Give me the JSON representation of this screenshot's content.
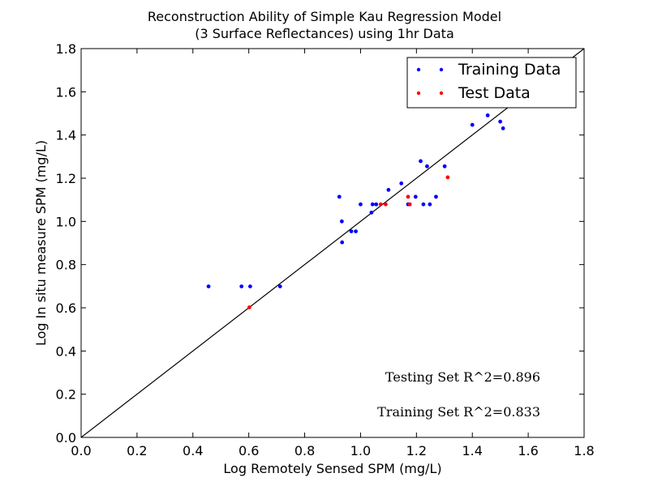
{
  "chart_data": {
    "type": "scatter",
    "title_line1": "Reconstruction Ability of Simple Kau Regression Model",
    "title_line2": "(3 Surface Reflectances) using 1hr Data",
    "xlabel": "Log Remotely Sensed SPM (mg/L)",
    "ylabel": "Log In situ measure SPM (mg/L)",
    "xlim": [
      0.0,
      1.8
    ],
    "ylim": [
      0.0,
      1.8
    ],
    "xticks": [
      "0.0",
      "0.2",
      "0.4",
      "0.6",
      "0.8",
      "1.0",
      "1.2",
      "1.4",
      "1.6",
      "1.8"
    ],
    "yticks": [
      "0.0",
      "0.2",
      "0.4",
      "0.6",
      "0.8",
      "1.0",
      "1.2",
      "1.4",
      "1.6",
      "1.8"
    ],
    "grid": false,
    "legend_position": "upper-right",
    "series": [
      {
        "name": "Training Data",
        "color": "#0000ff",
        "points": [
          [
            0.456,
            0.699
          ],
          [
            0.574,
            0.699
          ],
          [
            0.605,
            0.699
          ],
          [
            0.712,
            0.699
          ],
          [
            0.924,
            1.114
          ],
          [
            0.933,
            1.0
          ],
          [
            0.934,
            0.903
          ],
          [
            0.967,
            0.954
          ],
          [
            0.983,
            0.954
          ],
          [
            1.0,
            1.079
          ],
          [
            1.039,
            1.041
          ],
          [
            1.043,
            1.079
          ],
          [
            1.056,
            1.079
          ],
          [
            1.1,
            1.146
          ],
          [
            1.146,
            1.176
          ],
          [
            1.17,
            1.079
          ],
          [
            1.176,
            1.079
          ],
          [
            1.197,
            1.114
          ],
          [
            1.215,
            1.279
          ],
          [
            1.225,
            1.079
          ],
          [
            1.238,
            1.255
          ],
          [
            1.248,
            1.079
          ],
          [
            1.27,
            1.114
          ],
          [
            1.301,
            1.255
          ],
          [
            1.4,
            1.447
          ],
          [
            1.455,
            1.491
          ],
          [
            1.5,
            1.462
          ],
          [
            1.51,
            1.431
          ]
        ]
      },
      {
        "name": "Test Data",
        "color": "#ff0000",
        "points": [
          [
            0.602,
            0.602
          ],
          [
            1.072,
            1.079
          ],
          [
            1.09,
            1.079
          ],
          [
            1.17,
            1.114
          ],
          [
            1.176,
            1.079
          ],
          [
            1.312,
            1.204
          ]
        ]
      }
    ],
    "reference_line": {
      "from": [
        0.0,
        0.0
      ],
      "to": [
        1.8,
        1.8
      ],
      "color": "#000000"
    },
    "annotations": [
      {
        "text": "Testing Set R^2=0.896"
      },
      {
        "text": "Training Set R^2=0.833"
      }
    ]
  }
}
